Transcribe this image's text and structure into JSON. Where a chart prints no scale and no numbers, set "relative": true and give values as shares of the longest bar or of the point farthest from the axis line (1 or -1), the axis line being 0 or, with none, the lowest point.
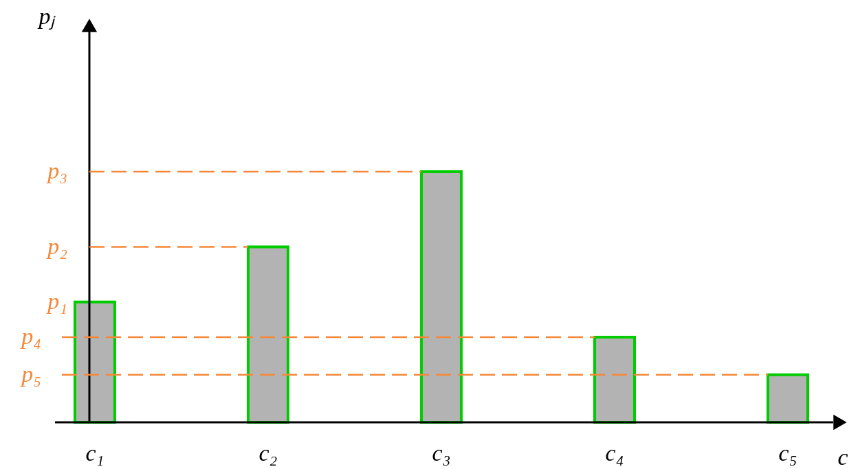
{
  "chart_data": {
    "type": "bar",
    "relative": true,
    "xlabel": "c",
    "categories": [
      "c₁",
      "c₂",
      "c₃",
      "c₄",
      "c₅"
    ],
    "values": [
      0.48,
      0.7,
      1,
      0.34,
      0.19
    ],
    "color": "#b3b3b3",
    "ref_lines": [
      {
        "axis": "y",
        "value": 1,
        "label": "p₃",
        "color": "#f5883a",
        "line_style": "dashed"
      },
      {
        "axis": "y",
        "value": 0.7,
        "label": "p₂",
        "color": "#f5883a",
        "line_style": "dashed"
      },
      {
        "axis": "y",
        "value": 0.34,
        "label": "p₄",
        "color": "#f5883a",
        "line_style": "dashed"
      },
      {
        "axis": "y",
        "value": 0.19,
        "label": "p₅",
        "color": "#f5883a",
        "line_style": "dashed"
      }
    ],
    "annotations": [
      "pⱼ",
      "p₁"
    ]
  }
}
